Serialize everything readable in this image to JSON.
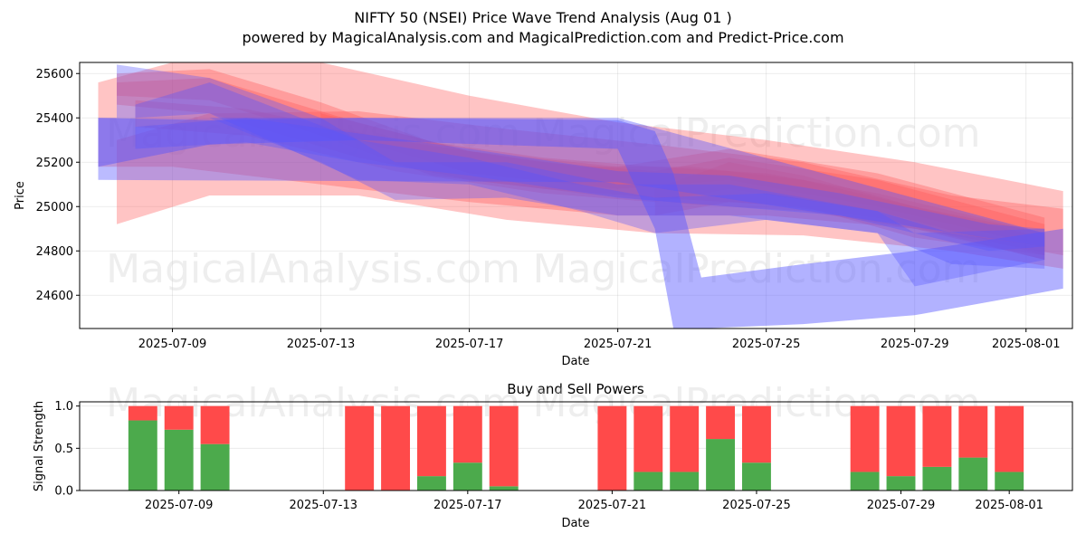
{
  "chart_data": [
    {
      "type": "area",
      "title": "NIFTY 50 (NSEI) Price Wave Trend Analysis (Aug 01 )",
      "subtitle": "powered by MagicalAnalysis.com and MagicalPrediction.com and Predict-Price.com",
      "xlabel": "Date",
      "ylabel": "Price",
      "xlim": [
        "2025-07-06T12:00",
        "2025-08-02T06:00"
      ],
      "ylim": [
        24450,
        25650
      ],
      "x_ticks": [
        "2025-07-09",
        "2025-07-13",
        "2025-07-17",
        "2025-07-21",
        "2025-07-25",
        "2025-07-29",
        "2025-08-01"
      ],
      "y_ticks": [
        24600,
        24800,
        25000,
        25200,
        25400,
        25600
      ],
      "grid": true,
      "red_color": "#ff5555",
      "blue_color": "#5555ff",
      "bands": [
        {
          "color": "red",
          "opacity": 0.35,
          "points": [
            [
              "2025-07-07T00:00",
              25180,
              25560
            ],
            [
              "2025-07-09T00:00",
              25180,
              25650
            ],
            [
              "2025-07-13T00:00",
              25100,
              25650
            ],
            [
              "2025-07-17T00:00",
              25020,
              25500
            ],
            [
              "2025-07-21T00:00",
              24960,
              25380
            ],
            [
              "2025-07-25T00:00",
              24960,
              25300
            ],
            [
              "2025-07-29T00:00",
              24900,
              25200
            ],
            [
              "2025-08-02T00:00",
              24780,
              25070
            ]
          ]
        },
        {
          "color": "red",
          "opacity": 0.35,
          "points": [
            [
              "2025-07-07T12:00",
              24920,
              25300
            ],
            [
              "2025-07-10T00:00",
              25050,
              25420
            ],
            [
              "2025-07-14T00:00",
              25050,
              25430
            ],
            [
              "2025-07-18T00:00",
              24940,
              25350
            ],
            [
              "2025-07-22T00:00",
              24880,
              25280
            ],
            [
              "2025-07-26T00:00",
              24870,
              25200
            ],
            [
              "2025-07-30T00:00",
              24800,
              25050
            ],
            [
              "2025-08-02T00:00",
              24720,
              24990
            ]
          ]
        },
        {
          "color": "red",
          "opacity": 0.35,
          "points": [
            [
              "2025-07-07T12:00",
              25500,
              25600
            ],
            [
              "2025-07-10T00:00",
              25480,
              25620
            ],
            [
              "2025-07-13T00:00",
              25320,
              25470
            ],
            [
              "2025-07-16T00:00",
              25140,
              25290
            ],
            [
              "2025-07-19T00:00",
              25080,
              25220
            ],
            [
              "2025-07-22T00:00",
              25040,
              25180
            ],
            [
              "2025-07-25T00:00",
              25010,
              25150
            ],
            [
              "2025-07-28T00:00",
              24950,
              25060
            ],
            [
              "2025-08-01T12:00",
              24760,
              24880
            ]
          ]
        },
        {
          "color": "red",
          "opacity": 0.35,
          "points": [
            [
              "2025-07-07T12:00",
              25460,
              25560
            ],
            [
              "2025-07-10T00:00",
              25420,
              25580
            ],
            [
              "2025-07-14T00:00",
              25220,
              25380
            ],
            [
              "2025-07-17T00:00",
              25120,
              25250
            ],
            [
              "2025-07-20T00:00",
              25060,
              25180
            ],
            [
              "2025-07-23T00:00",
              25010,
              25180
            ],
            [
              "2025-07-26T00:00",
              24980,
              25120
            ],
            [
              "2025-07-29T00:00",
              24900,
              25000
            ],
            [
              "2025-08-01T12:00",
              24760,
              24860
            ]
          ]
        },
        {
          "color": "red",
          "opacity": 0.35,
          "points": [
            [
              "2025-07-08T00:00",
              25360,
              25480
            ],
            [
              "2025-07-11T00:00",
              25320,
              25440
            ],
            [
              "2025-07-15T00:00",
              25160,
              25300
            ],
            [
              "2025-07-19T00:00",
              25060,
              25200
            ],
            [
              "2025-07-22T00:00",
              25020,
              25160
            ],
            [
              "2025-07-24T00:00",
              25080,
              25220
            ],
            [
              "2025-07-28T00:00",
              24980,
              25120
            ],
            [
              "2025-08-01T12:00",
              24780,
              24920
            ]
          ]
        },
        {
          "color": "red",
          "opacity": 0.35,
          "points": [
            [
              "2025-07-13T00:00",
              25350,
              25420
            ],
            [
              "2025-07-17T00:00",
              25150,
              25250
            ],
            [
              "2025-07-21T00:00",
              25080,
              25180
            ],
            [
              "2025-07-24T00:00",
              25120,
              25260
            ],
            [
              "2025-07-28T00:00",
              25000,
              25150
            ],
            [
              "2025-08-01T12:00",
              24820,
              24950
            ]
          ]
        },
        {
          "color": "red",
          "opacity": 0.35,
          "points": [
            [
              "2025-07-22T00:00",
              24960,
              25080
            ],
            [
              "2025-07-24T00:00",
              25020,
              25200
            ],
            [
              "2025-07-26T00:00",
              25000,
              25140
            ],
            [
              "2025-07-29T00:00",
              24860,
              25000
            ],
            [
              "2025-08-01T12:00",
              24780,
              24880
            ]
          ]
        },
        {
          "color": "blue",
          "opacity": 0.45,
          "points": [
            [
              "2025-07-07T00:00",
              25180,
              25400
            ],
            [
              "2025-07-10T00:00",
              25280,
              25390
            ],
            [
              "2025-07-14T00:00",
              25300,
              25400
            ],
            [
              "2025-07-21T00:00",
              25260,
              25390
            ],
            [
              "2025-07-22T00:00",
              24900,
              25340
            ],
            [
              "2025-07-22T12:00",
              24450,
              25150
            ],
            [
              "2025-07-23T06:00",
              24450,
              24680
            ],
            [
              "2025-07-26T00:00",
              24470,
              24740
            ],
            [
              "2025-07-29T00:00",
              24510,
              24800
            ],
            [
              "2025-08-02T00:00",
              24630,
              24900
            ]
          ]
        },
        {
          "color": "blue",
          "opacity": 0.35,
          "points": [
            [
              "2025-07-07T12:00",
              25400,
              25640
            ],
            [
              "2025-07-10T00:00",
              25400,
              25580
            ],
            [
              "2025-07-13T00:00",
              25200,
              25400
            ],
            [
              "2025-07-15T00:00",
              25030,
              25200
            ],
            [
              "2025-07-18T00:00",
              25040,
              25200
            ],
            [
              "2025-07-21T00:00",
              24960,
              25100
            ],
            [
              "2025-07-24T00:00",
              24960,
              25100
            ],
            [
              "2025-07-28T00:00",
              24880,
              24980
            ],
            [
              "2025-07-29T00:00",
              24640,
              24880
            ],
            [
              "2025-08-01T12:00",
              24760,
              24900
            ]
          ]
        },
        {
          "color": "blue",
          "opacity": 0.35,
          "points": [
            [
              "2025-07-08T00:00",
              25400,
              25460
            ],
            [
              "2025-07-10T00:00",
              25420,
              25560
            ],
            [
              "2025-07-14T00:00",
              25120,
              25300
            ],
            [
              "2025-07-17T00:00",
              25100,
              25220
            ],
            [
              "2025-07-20T00:00",
              24980,
              25100
            ],
            [
              "2025-07-22T00:00",
              24880,
              25040
            ],
            [
              "2025-07-25T00:00",
              24940,
              25060
            ],
            [
              "2025-07-28T00:00",
              24880,
              24980
            ],
            [
              "2025-07-30T00:00",
              24740,
              24880
            ],
            [
              "2025-08-01T12:00",
              24720,
              24820
            ]
          ]
        },
        {
          "color": "blue",
          "opacity": 0.35,
          "points": [
            [
              "2025-07-08T00:00",
              25260,
              25360
            ],
            [
              "2025-07-11T00:00",
              25290,
              25400
            ],
            [
              "2025-07-14T00:00",
              25200,
              25330
            ],
            [
              "2025-07-17T00:00",
              25140,
              25260
            ],
            [
              "2025-07-21T00:00",
              25040,
              25160
            ],
            [
              "2025-07-24T00:00",
              25000,
              25140
            ],
            [
              "2025-07-27T00:00",
              24960,
              25060
            ],
            [
              "2025-07-31T00:00",
              24800,
              24920
            ],
            [
              "2025-08-01T12:00",
              24820,
              24900
            ]
          ]
        },
        {
          "color": "blue",
          "opacity": 0.4,
          "points": [
            [
              "2025-07-07T00:00",
              25120,
              25400
            ],
            [
              "2025-07-21T00:00",
              25110,
              25400
            ],
            [
              "2025-08-01T12:00",
              24820,
              24880
            ]
          ]
        }
      ]
    },
    {
      "type": "bar",
      "title": "Buy and Sell Powers",
      "xlabel": "Date",
      "ylabel": "Signal Strength",
      "ylim": [
        0,
        1.05
      ],
      "y_ticks": [
        0.0,
        0.5,
        1.0
      ],
      "y_tick_labels": [
        "0.0",
        "0.5",
        "1.0"
      ],
      "x_ticks": [
        "2025-07-09",
        "2025-07-13",
        "2025-07-17",
        "2025-07-21",
        "2025-07-25",
        "2025-07-29",
        "2025-08-01"
      ],
      "xlim": [
        "2025-07-06T06:00",
        "2025-08-02T18:00"
      ],
      "grid": true,
      "buy_color": "#4caa4c",
      "sell_color": "#ff4a4a",
      "series": [
        {
          "name": "Buy",
          "values": [
            0.83,
            0.72,
            0.55,
            0,
            0,
            0.17,
            0.33,
            0.05,
            0,
            0.22,
            0.22,
            0.61,
            0.33,
            0.22,
            0.17,
            0.28,
            0.39,
            0.22
          ]
        },
        {
          "name": "Sell",
          "values": [
            0.17,
            0.28,
            0.45,
            1.0,
            1.0,
            0.83,
            0.67,
            0.95,
            1.0,
            0.78,
            0.78,
            0.39,
            0.67,
            0.78,
            0.83,
            0.72,
            0.61,
            0.78
          ]
        }
      ],
      "dates": [
        "2025-07-08",
        "2025-07-09",
        "2025-07-10",
        "2025-07-14",
        "2025-07-15",
        "2025-07-16",
        "2025-07-17",
        "2025-07-18",
        "2025-07-21",
        "2025-07-22",
        "2025-07-23",
        "2025-07-24",
        "2025-07-25",
        "2025-07-28",
        "2025-07-29",
        "2025-07-30",
        "2025-07-31",
        "2025-08-01"
      ]
    }
  ],
  "watermarks": {
    "top": [
      "MagicalAnalysis.com",
      "MagicalPrediction.com",
      "MagicalAnalysis.com",
      "MagicalPrediction.com"
    ],
    "bottom": [
      "MagicalAnalysis.com",
      "MagicalPrediction.com"
    ]
  }
}
